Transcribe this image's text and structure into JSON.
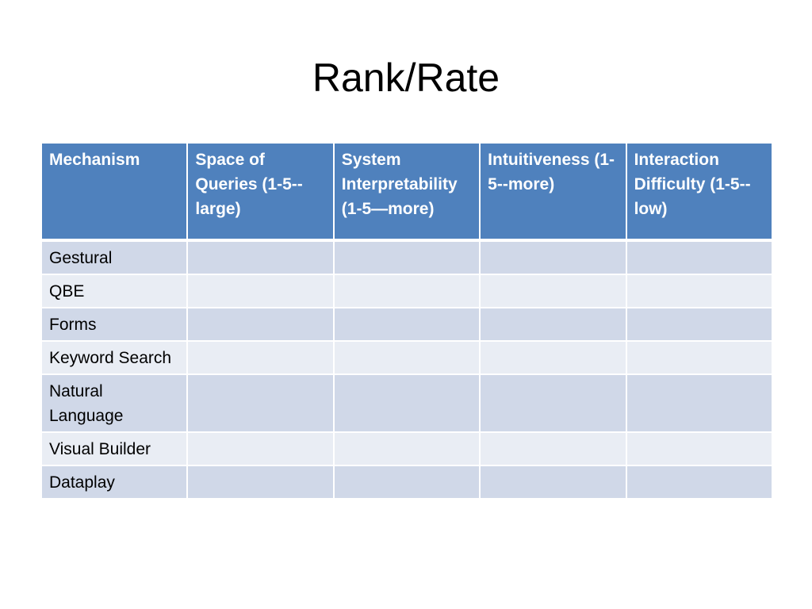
{
  "slide": {
    "title": "Rank/Rate"
  },
  "table": {
    "headers": [
      "Mechanism",
      "Space of Queries (1-5--large)",
      "System Interpretability (1-5—more)",
      "Intuitiveness (1-5--more)",
      "Interaction Difficulty (1-5--low)"
    ],
    "rows": [
      {
        "mechanism": "Gestural",
        "cells": [
          "",
          "",
          "",
          ""
        ]
      },
      {
        "mechanism": "QBE",
        "cells": [
          "",
          "",
          "",
          ""
        ]
      },
      {
        "mechanism": "Forms",
        "cells": [
          "",
          "",
          "",
          ""
        ]
      },
      {
        "mechanism": "Keyword Search",
        "cells": [
          "",
          "",
          "",
          ""
        ]
      },
      {
        "mechanism": "Natural Language",
        "cells": [
          "",
          "",
          "",
          ""
        ]
      },
      {
        "mechanism": "Visual Builder",
        "cells": [
          "",
          "",
          "",
          ""
        ]
      },
      {
        "mechanism": "Dataplay",
        "cells": [
          "",
          "",
          "",
          ""
        ]
      }
    ]
  },
  "colors": {
    "header_bg": "#4f81bd",
    "row_band_dark": "#d0d8e8",
    "row_band_light": "#e9edf4"
  }
}
